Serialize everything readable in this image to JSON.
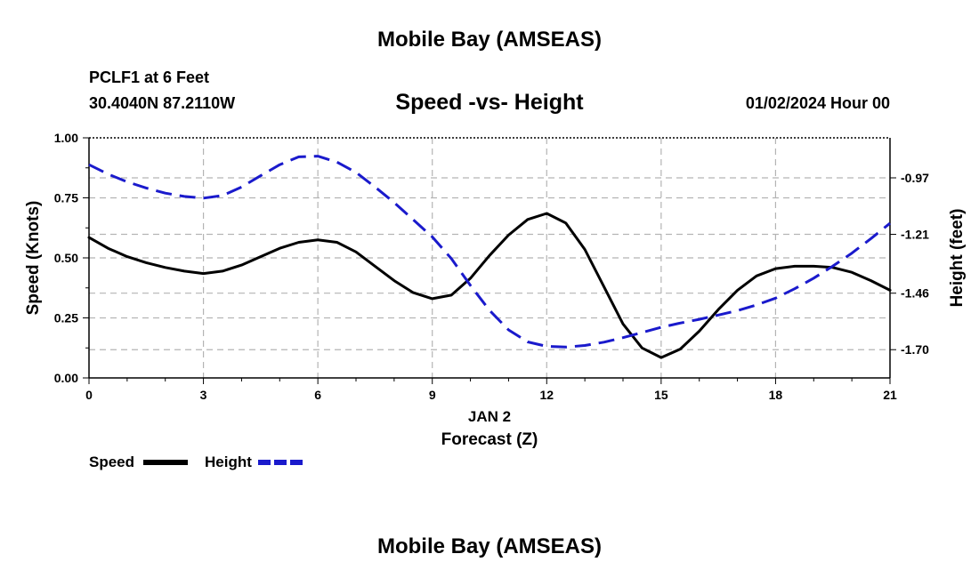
{
  "page": {
    "title_top": "Mobile Bay (AMSEAS)",
    "station": "PCLF1 at 6 Feet",
    "coords": "30.4040N  87.2110W",
    "subtitle": "Speed -vs- Height",
    "datetime": "01/02/2024 Hour 00",
    "date_label": "JAN 2",
    "xlabel": "Forecast (Z)",
    "title_bottom": "Mobile Bay (AMSEAS)",
    "legend": [
      {
        "name": "Speed",
        "color": "#000000",
        "dash": "solid"
      },
      {
        "name": "Height",
        "color": "#1a1acc",
        "dash": "dashed"
      }
    ]
  },
  "chart_data": {
    "type": "line",
    "title": "Speed -vs- Height",
    "xlabel": "Forecast (Z)",
    "ylabel_left": "Speed (Knots)",
    "ylabel_right": "Height (feet)",
    "xlim": [
      0,
      21
    ],
    "ylim_left": [
      0,
      1
    ],
    "ylim_right": [
      -1.82,
      -0.8
    ],
    "x_ticks": [
      0,
      3,
      6,
      9,
      12,
      15,
      18,
      21
    ],
    "y_left_ticks": [
      "0.00",
      "0.25",
      "0.50",
      "0.75",
      "1.00"
    ],
    "y_right_ticks": [
      "-0.97",
      "-1.21",
      "-1.46",
      "-1.70"
    ],
    "grid": true,
    "series": [
      {
        "name": "Speed",
        "axis": "left",
        "color": "#000000",
        "x": [
          0,
          0.5,
          1,
          1.5,
          2,
          2.5,
          3,
          3.5,
          4,
          4.5,
          5,
          5.5,
          6,
          6.5,
          7,
          7.5,
          8,
          8.5,
          9,
          9.5,
          10,
          10.5,
          11,
          11.5,
          12,
          12.5,
          13,
          13.5,
          14,
          14.5,
          15,
          15.5,
          16,
          16.5,
          17,
          17.5,
          18,
          18.5,
          19,
          19.5,
          20,
          20.5,
          21
        ],
        "values": [
          0.585,
          0.54,
          0.505,
          0.48,
          0.46,
          0.445,
          0.435,
          0.445,
          0.47,
          0.505,
          0.54,
          0.565,
          0.575,
          0.565,
          0.525,
          0.465,
          0.405,
          0.355,
          0.33,
          0.345,
          0.415,
          0.51,
          0.595,
          0.66,
          0.685,
          0.645,
          0.535,
          0.38,
          0.225,
          0.125,
          0.085,
          0.12,
          0.195,
          0.285,
          0.365,
          0.425,
          0.455,
          0.465,
          0.465,
          0.46,
          0.44,
          0.405,
          0.365
        ]
      },
      {
        "name": "Height",
        "axis": "right",
        "color": "#1a1acc",
        "x": [
          0,
          0.5,
          1,
          1.5,
          2,
          2.5,
          3,
          3.5,
          4,
          4.5,
          5,
          5.5,
          6,
          6.5,
          7,
          7.5,
          8,
          8.5,
          9,
          9.5,
          10,
          10.5,
          11,
          11.5,
          12,
          12.5,
          13,
          13.5,
          14,
          14.5,
          15,
          15.5,
          16,
          16.5,
          17,
          17.5,
          18,
          18.5,
          19,
          19.5,
          20,
          20.5,
          21
        ],
        "values": [
          -0.914,
          -0.954,
          -0.987,
          -1.013,
          -1.035,
          -1.049,
          -1.056,
          -1.045,
          -1.009,
          -0.961,
          -0.914,
          -0.881,
          -0.878,
          -0.903,
          -0.947,
          -1.009,
          -1.075,
          -1.148,
          -1.221,
          -1.313,
          -1.427,
          -1.533,
          -1.616,
          -1.667,
          -1.686,
          -1.689,
          -1.682,
          -1.668,
          -1.649,
          -1.627,
          -1.605,
          -1.587,
          -1.571,
          -1.553,
          -1.534,
          -1.51,
          -1.481,
          -1.441,
          -1.396,
          -1.345,
          -1.29,
          -1.228,
          -1.163
        ]
      }
    ]
  }
}
